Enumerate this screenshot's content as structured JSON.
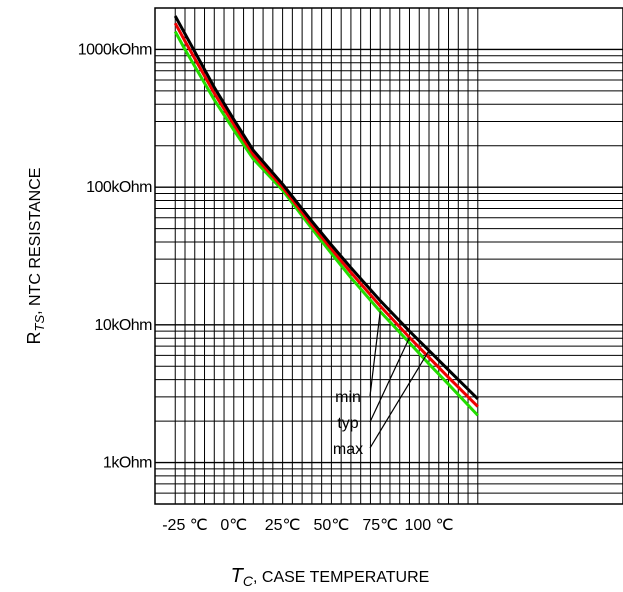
{
  "chart_data": {
    "type": "line",
    "title": "",
    "xlabel": "T_C, CASE TEMPERATURE",
    "xlabel_main": "T",
    "xlabel_sub": "C",
    "xlabel_rest": ", CASE TEMPERATURE",
    "ylabel": "R_TS, NTC RESISTANCE",
    "ylabel_main": "R",
    "ylabel_sub": "TS",
    "ylabel_rest": ", NTC RESISTANCE",
    "xlim": [
      -30,
      125
    ],
    "ylim_ohm": [
      500,
      2000000
    ],
    "y_scale": "log",
    "grid": true,
    "x_ticks": [
      {
        "value": -25,
        "label": "-25 ℃"
      },
      {
        "value": 0,
        "label": "0℃"
      },
      {
        "value": 25,
        "label": "25℃"
      },
      {
        "value": 50,
        "label": "50℃"
      },
      {
        "value": 75,
        "label": "75℃"
      },
      {
        "value": 100,
        "label": "100 ℃"
      }
    ],
    "y_ticks": [
      {
        "value": 1000,
        "label": "1kOhm"
      },
      {
        "value": 10000,
        "label": "10kOhm"
      },
      {
        "value": 100000,
        "label": "100kOhm"
      },
      {
        "value": 1000000,
        "label": "1000kOhm"
      }
    ],
    "series": [
      {
        "name": "min",
        "color": "#22dd00",
        "x": [
          -30,
          -25,
          -10,
          0,
          10,
          25,
          40,
          50,
          60,
          75,
          90,
          100,
          110,
          125
        ],
        "y": [
          1350000,
          1000000,
          430000,
          260000,
          160000,
          95000,
          50000,
          33000,
          22000,
          12500,
          7400,
          5200,
          3700,
          2200
        ]
      },
      {
        "name": "typ",
        "color": "#ee0000",
        "x": [
          -30,
          -25,
          -10,
          0,
          10,
          25,
          40,
          50,
          60,
          75,
          90,
          100,
          110,
          125
        ],
        "y": [
          1550000,
          1150000,
          480000,
          285000,
          172000,
          100000,
          53000,
          35500,
          24000,
          13700,
          8100,
          5800,
          4150,
          2550
        ]
      },
      {
        "name": "max",
        "color": "#000000",
        "x": [
          -30,
          -25,
          -10,
          0,
          10,
          25,
          40,
          50,
          60,
          75,
          90,
          100,
          110,
          125
        ],
        "y": [
          1750000,
          1300000,
          530000,
          310000,
          185000,
          105000,
          56500,
          38000,
          26000,
          15000,
          9000,
          6500,
          4700,
          2900
        ]
      }
    ],
    "annotations": [
      "min",
      "typ",
      "max"
    ]
  }
}
